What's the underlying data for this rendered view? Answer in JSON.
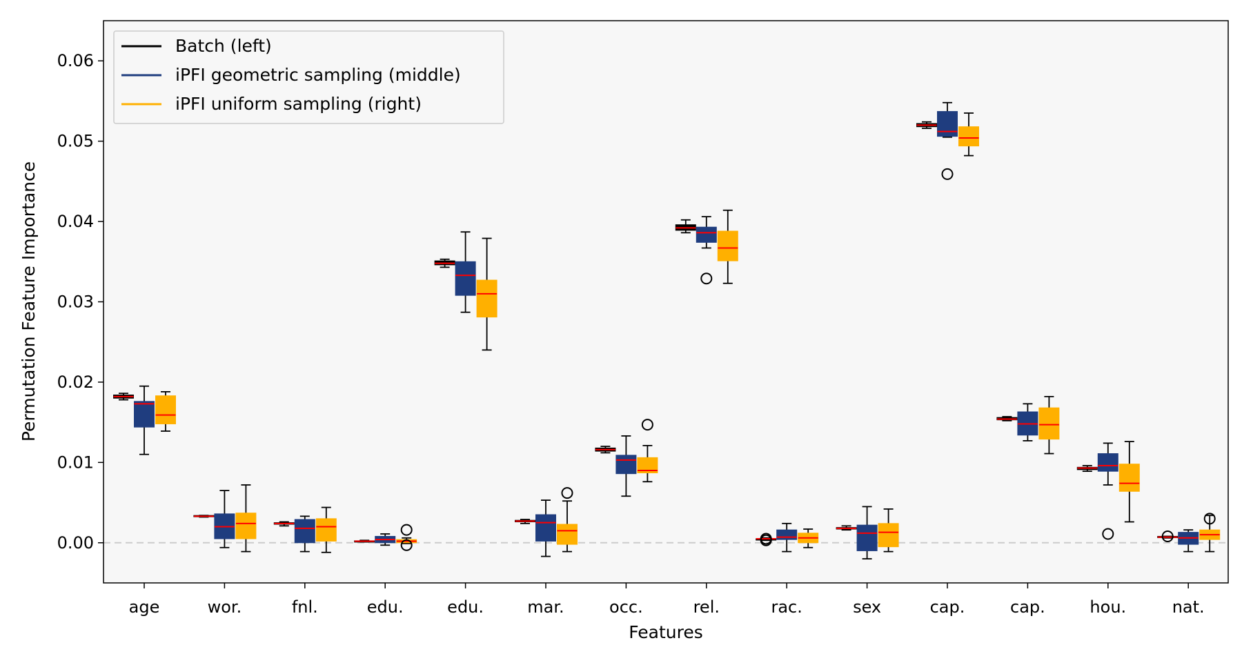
{
  "chart_data": {
    "type": "boxplot",
    "xlabel": "Features",
    "ylabel": "Permutation Feature Importance",
    "ylim": [
      -0.005,
      0.065
    ],
    "yticks": [
      0.0,
      0.01,
      0.02,
      0.03,
      0.04,
      0.05,
      0.06
    ],
    "ytick_labels": [
      "0.00",
      "0.01",
      "0.02",
      "0.03",
      "0.04",
      "0.05",
      "0.06"
    ],
    "reference_line": 0.0,
    "legend_position": "top-left",
    "categories": [
      "age",
      "wor.",
      "fnl.",
      "edu.",
      "edu.",
      "mar.",
      "occ.",
      "rel.",
      "rac.",
      "sex",
      "cap.",
      "cap.",
      "hou.",
      "nat."
    ],
    "series": [
      {
        "name": "Batch (left)",
        "color": "#000000",
        "box_color": "#000000",
        "boxes": [
          {
            "whislo": 0.0178,
            "q1": 0.018,
            "med": 0.0182,
            "q3": 0.0184,
            "whishi": 0.0186,
            "fliers": []
          },
          {
            "whislo": 0.0032,
            "q1": 0.0033,
            "med": 0.0033,
            "q3": 0.0034,
            "whishi": 0.0034,
            "fliers": []
          },
          {
            "whislo": 0.0021,
            "q1": 0.0023,
            "med": 0.0024,
            "q3": 0.0025,
            "whishi": 0.0026,
            "fliers": []
          },
          {
            "whislo": 0.0001,
            "q1": 0.00015,
            "med": 0.0002,
            "q3": 0.00025,
            "whishi": 0.0003,
            "fliers": []
          },
          {
            "whislo": 0.0343,
            "q1": 0.0346,
            "med": 0.0348,
            "q3": 0.0351,
            "whishi": 0.0353,
            "fliers": []
          },
          {
            "whislo": 0.0024,
            "q1": 0.0026,
            "med": 0.0027,
            "q3": 0.0028,
            "whishi": 0.0029,
            "fliers": []
          },
          {
            "whislo": 0.0112,
            "q1": 0.0114,
            "med": 0.0116,
            "q3": 0.0118,
            "whishi": 0.012,
            "fliers": []
          },
          {
            "whislo": 0.0386,
            "q1": 0.0389,
            "med": 0.0392,
            "q3": 0.0396,
            "whishi": 0.0402,
            "fliers": []
          },
          {
            "whislo": 0.0003,
            "q1": 0.0004,
            "med": 0.0005,
            "q3": 0.0005,
            "whishi": 0.0006,
            "fliers": [
              0.0003,
              0.0005
            ]
          },
          {
            "whislo": 0.0016,
            "q1": 0.0017,
            "med": 0.0018,
            "q3": 0.0019,
            "whishi": 0.0021,
            "fliers": []
          },
          {
            "whislo": 0.0516,
            "q1": 0.0518,
            "med": 0.052,
            "q3": 0.0522,
            "whishi": 0.0524,
            "fliers": []
          },
          {
            "whislo": 0.0152,
            "q1": 0.0153,
            "med": 0.0154,
            "q3": 0.0156,
            "whishi": 0.0157,
            "fliers": []
          },
          {
            "whislo": 0.0089,
            "q1": 0.0091,
            "med": 0.0093,
            "q3": 0.0094,
            "whishi": 0.0096,
            "fliers": []
          },
          {
            "whislo": 0.0006,
            "q1": 0.0007,
            "med": 0.0007,
            "q3": 0.0008,
            "whishi": 0.0008,
            "fliers": [
              0.0008
            ]
          }
        ]
      },
      {
        "name": "iPFI geometric sampling (middle)",
        "color": "#1f3d7f",
        "box_color": "#1f3d7f",
        "boxes": [
          {
            "whislo": 0.011,
            "q1": 0.0144,
            "med": 0.0173,
            "q3": 0.0176,
            "whishi": 0.0195,
            "fliers": []
          },
          {
            "whislo": -0.0006,
            "q1": 0.0005,
            "med": 0.002,
            "q3": 0.0036,
            "whishi": 0.0065,
            "fliers": []
          },
          {
            "whislo": -0.0011,
            "q1": 0.0,
            "med": 0.0018,
            "q3": 0.0029,
            "whishi": 0.0033,
            "fliers": []
          },
          {
            "whislo": -0.0003,
            "q1": 0.0,
            "med": 0.0004,
            "q3": 0.0008,
            "whishi": 0.0011,
            "fliers": []
          },
          {
            "whislo": 0.0287,
            "q1": 0.0308,
            "med": 0.0333,
            "q3": 0.035,
            "whishi": 0.0387,
            "fliers": []
          },
          {
            "whislo": -0.0017,
            "q1": 0.0002,
            "med": 0.0025,
            "q3": 0.0035,
            "whishi": 0.0053,
            "fliers": []
          },
          {
            "whislo": 0.0058,
            "q1": 0.0086,
            "med": 0.0103,
            "q3": 0.0109,
            "whishi": 0.0133,
            "fliers": []
          },
          {
            "whislo": 0.0367,
            "q1": 0.0374,
            "med": 0.0386,
            "q3": 0.0393,
            "whishi": 0.0406,
            "fliers": [
              0.0329
            ]
          },
          {
            "whislo": -0.0011,
            "q1": 0.0004,
            "med": 0.0007,
            "q3": 0.0016,
            "whishi": 0.0024,
            "fliers": []
          },
          {
            "whislo": -0.002,
            "q1": -0.001,
            "med": 0.0012,
            "q3": 0.0022,
            "whishi": 0.0045,
            "fliers": []
          },
          {
            "whislo": 0.0505,
            "q1": 0.0506,
            "med": 0.0512,
            "q3": 0.0537,
            "whishi": 0.0548,
            "fliers": [
              0.0459
            ]
          },
          {
            "whislo": 0.0127,
            "q1": 0.0134,
            "med": 0.0148,
            "q3": 0.0163,
            "whishi": 0.0173,
            "fliers": []
          },
          {
            "whislo": 0.0072,
            "q1": 0.0089,
            "med": 0.0096,
            "q3": 0.0111,
            "whishi": 0.0124,
            "fliers": [
              0.0011
            ]
          },
          {
            "whislo": -0.0011,
            "q1": -0.0002,
            "med": 0.0006,
            "q3": 0.0013,
            "whishi": 0.0016,
            "fliers": []
          }
        ]
      },
      {
        "name": "iPFI uniform sampling (right)",
        "color": "#ffb000",
        "box_color": "#ffb000",
        "boxes": [
          {
            "whislo": 0.0139,
            "q1": 0.0148,
            "med": 0.0159,
            "q3": 0.0183,
            "whishi": 0.0188,
            "fliers": []
          },
          {
            "whislo": -0.0011,
            "q1": 0.0005,
            "med": 0.0024,
            "q3": 0.0037,
            "whishi": 0.0072,
            "fliers": []
          },
          {
            "whislo": -0.0012,
            "q1": 0.0002,
            "med": 0.002,
            "q3": 0.003,
            "whishi": 0.0044,
            "fliers": []
          },
          {
            "whislo": -0.0001,
            "q1": 0.0,
            "med": 0.0002,
            "q3": 0.0004,
            "whishi": 0.0006,
            "fliers": [
              0.0016,
              -0.0003
            ]
          },
          {
            "whislo": 0.024,
            "q1": 0.0281,
            "med": 0.031,
            "q3": 0.0327,
            "whishi": 0.0379,
            "fliers": []
          },
          {
            "whislo": -0.0011,
            "q1": -0.0002,
            "med": 0.0015,
            "q3": 0.0023,
            "whishi": 0.0052,
            "fliers": [
              0.0062
            ]
          },
          {
            "whislo": 0.0076,
            "q1": 0.0087,
            "med": 0.009,
            "q3": 0.0106,
            "whishi": 0.0121,
            "fliers": [
              0.0147
            ]
          },
          {
            "whislo": 0.0323,
            "q1": 0.0351,
            "med": 0.0367,
            "q3": 0.0388,
            "whishi": 0.0414,
            "fliers": []
          },
          {
            "whislo": -0.0006,
            "q1": 0.0,
            "med": 0.0006,
            "q3": 0.0012,
            "whishi": 0.0017,
            "fliers": []
          },
          {
            "whislo": -0.0011,
            "q1": -0.0005,
            "med": 0.0013,
            "q3": 0.0024,
            "whishi": 0.0042,
            "fliers": []
          },
          {
            "whislo": 0.0482,
            "q1": 0.0494,
            "med": 0.0504,
            "q3": 0.0518,
            "whishi": 0.0535,
            "fliers": []
          },
          {
            "whislo": 0.0111,
            "q1": 0.0129,
            "med": 0.0147,
            "q3": 0.0168,
            "whishi": 0.0182,
            "fliers": []
          },
          {
            "whislo": 0.0026,
            "q1": 0.0064,
            "med": 0.0074,
            "q3": 0.0098,
            "whishi": 0.0126,
            "fliers": []
          },
          {
            "whislo": -0.0011,
            "q1": 0.0004,
            "med": 0.001,
            "q3": 0.0016,
            "whishi": 0.0034,
            "fliers": [
              0.003
            ]
          }
        ]
      }
    ],
    "median_color": "#ff0000",
    "background": "#f7f7f7"
  }
}
